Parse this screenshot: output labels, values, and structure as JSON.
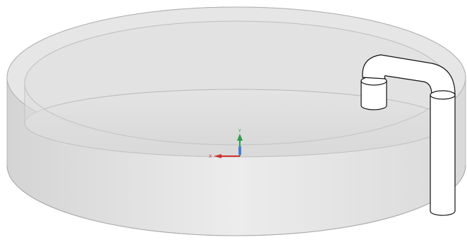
{
  "axis_labels": {
    "y": "Y",
    "x": "X"
  }
}
